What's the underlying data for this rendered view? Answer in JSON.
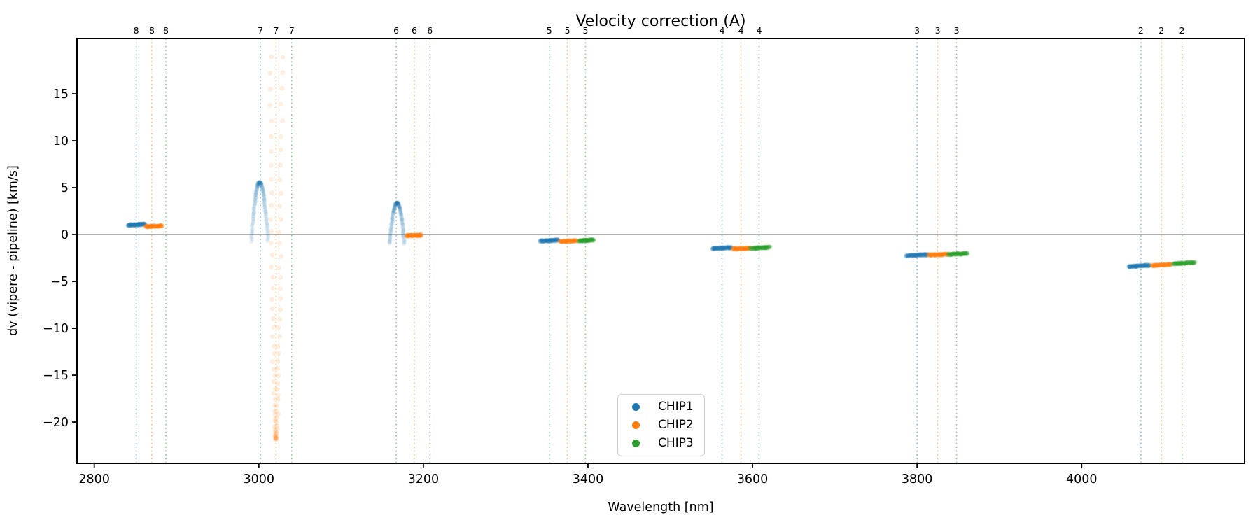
{
  "figure": {
    "title": "Velocity correction (A)",
    "xlabel": "Wavelength [nm]",
    "ylabel": "dv (vipere - pipeline) [km/s]"
  },
  "legend": {
    "items": [
      {
        "label": "CHIP1",
        "color": "#1f77b4"
      },
      {
        "label": "CHIP2",
        "color": "#ff7f0e"
      },
      {
        "label": "CHIP3",
        "color": "#2ca02c"
      }
    ]
  },
  "colors": {
    "CHIP1": "#1f77b4",
    "CHIP2": "#ff7f0e",
    "CHIP3": "#2ca02c",
    "zero_line": "#808080",
    "axis": "#000000",
    "background": "#ffffff"
  },
  "chart_data": {
    "type": "scatter",
    "title": "Velocity correction (A)",
    "xlabel": "Wavelength [nm]",
    "ylabel": "dv (vipere - pipeline) [km/s]",
    "xlim": [
      2779,
      4198
    ],
    "ylim": [
      -24.4,
      20.9
    ],
    "xticks": [
      2800,
      3000,
      3200,
      3400,
      3600,
      3800,
      4000
    ],
    "yticks": [
      15,
      10,
      5,
      0,
      -5,
      -10,
      -15,
      -20
    ],
    "grid": false,
    "zero_line_y": 0,
    "legend_position": "lower center",
    "order_markers": [
      {
        "order": "8",
        "lines": [
          {
            "chip": "CHIP1",
            "wavelength": 2851
          },
          {
            "chip": "CHIP2",
            "wavelength": 2870
          },
          {
            "chip": "CHIP3",
            "wavelength": 2887
          }
        ]
      },
      {
        "order": "7",
        "lines": [
          {
            "chip": "CHIP1",
            "wavelength": 3002
          },
          {
            "chip": "CHIP2",
            "wavelength": 3021
          },
          {
            "chip": "CHIP3",
            "wavelength": 3040
          }
        ]
      },
      {
        "order": "6",
        "lines": [
          {
            "chip": "CHIP1",
            "wavelength": 3167
          },
          {
            "chip": "CHIP2",
            "wavelength": 3189
          },
          {
            "chip": "CHIP3",
            "wavelength": 3208
          }
        ]
      },
      {
        "order": "5",
        "lines": [
          {
            "chip": "CHIP1",
            "wavelength": 3353
          },
          {
            "chip": "CHIP2",
            "wavelength": 3375
          },
          {
            "chip": "CHIP3",
            "wavelength": 3397
          }
        ]
      },
      {
        "order": "4",
        "lines": [
          {
            "chip": "CHIP1",
            "wavelength": 3563
          },
          {
            "chip": "CHIP2",
            "wavelength": 3586
          },
          {
            "chip": "CHIP3",
            "wavelength": 3608
          }
        ]
      },
      {
        "order": "3",
        "lines": [
          {
            "chip": "CHIP1",
            "wavelength": 3800
          },
          {
            "chip": "CHIP2",
            "wavelength": 3825
          },
          {
            "chip": "CHIP3",
            "wavelength": 3848
          }
        ]
      },
      {
        "order": "2",
        "lines": [
          {
            "chip": "CHIP1",
            "wavelength": 4072
          },
          {
            "chip": "CHIP2",
            "wavelength": 4097
          },
          {
            "chip": "CHIP3",
            "wavelength": 4122
          }
        ]
      }
    ],
    "clusters": [
      {
        "chip": "CHIP1",
        "order": "8",
        "type": "strip",
        "x_range": [
          2841,
          2862
        ],
        "v": 1.05,
        "v_slope": 0.12
      },
      {
        "chip": "CHIP2",
        "order": "8",
        "type": "strip",
        "x_range": [
          2862,
          2883
        ],
        "v": 0.9,
        "v_slope": 0.1
      },
      {
        "chip": "CHIP1",
        "order": "7",
        "type": "arch",
        "x_center": 3001,
        "x_halfwidth": 10,
        "v_peak": 5.6,
        "v_base": -0.7
      },
      {
        "chip": "CHIP2",
        "order": "7",
        "type": "arch_inverted",
        "x_center": 3021,
        "x_halfwidth": 7,
        "v_min": -21.8,
        "v_top": 19.0
      },
      {
        "chip": "CHIP1",
        "order": "6",
        "type": "arch",
        "x_center": 3168,
        "x_halfwidth": 9,
        "v_peak": 3.4,
        "v_base": -1.0
      },
      {
        "chip": "CHIP2",
        "order": "6",
        "type": "strip",
        "x_range": [
          3179,
          3198
        ],
        "v": -0.1,
        "v_slope": 0.05
      },
      {
        "chip": "CHIP1",
        "order": "5",
        "type": "strip",
        "x_range": [
          3342,
          3364
        ],
        "v": -0.65,
        "v_slope": 0.1
      },
      {
        "chip": "CHIP2",
        "order": "5",
        "type": "strip",
        "x_range": [
          3366,
          3387
        ],
        "v": -0.7,
        "v_slope": 0.06
      },
      {
        "chip": "CHIP3",
        "order": "5",
        "type": "strip",
        "x_range": [
          3389,
          3407
        ],
        "v": -0.63,
        "v_slope": 0.1
      },
      {
        "chip": "CHIP1",
        "order": "4",
        "type": "strip",
        "x_range": [
          3551,
          3574
        ],
        "v": -1.45,
        "v_slope": 0.1
      },
      {
        "chip": "CHIP2",
        "order": "4",
        "type": "strip",
        "x_range": [
          3576,
          3597
        ],
        "v": -1.5,
        "v_slope": 0.08
      },
      {
        "chip": "CHIP3",
        "order": "4",
        "type": "strip",
        "x_range": [
          3598,
          3621
        ],
        "v": -1.42,
        "v_slope": 0.12
      },
      {
        "chip": "CHIP1",
        "order": "3",
        "type": "strip",
        "x_range": [
          3787,
          3813
        ],
        "v": -2.2,
        "v_slope": 0.1
      },
      {
        "chip": "CHIP2",
        "order": "3",
        "type": "strip",
        "x_range": [
          3814,
          3837
        ],
        "v": -2.15,
        "v_slope": 0.08
      },
      {
        "chip": "CHIP3",
        "order": "3",
        "type": "strip",
        "x_range": [
          3838,
          3861
        ],
        "v": -2.07,
        "v_slope": 0.1
      },
      {
        "chip": "CHIP1",
        "order": "2",
        "type": "strip",
        "x_range": [
          4057,
          4083
        ],
        "v": -3.35,
        "v_slope": 0.14
      },
      {
        "chip": "CHIP2",
        "order": "2",
        "type": "strip",
        "x_range": [
          4085,
          4109
        ],
        "v": -3.25,
        "v_slope": 0.12
      },
      {
        "chip": "CHIP3",
        "order": "2",
        "type": "strip",
        "x_range": [
          4111,
          4138
        ],
        "v": -3.05,
        "v_slope": 0.14
      }
    ]
  }
}
